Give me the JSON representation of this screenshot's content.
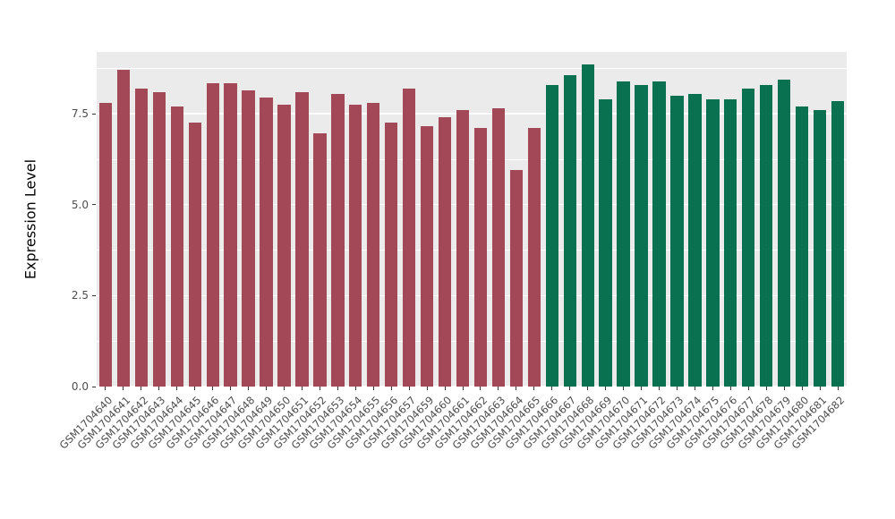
{
  "chart_data": {
    "type": "bar",
    "title": "",
    "xlabel": "",
    "ylabel": "Expression Level",
    "ylim": [
      0,
      9.2
    ],
    "yticks_major": [
      0.0,
      2.5,
      5.0,
      7.5
    ],
    "ytick_labels": [
      "0.0",
      "2.5",
      "5.0",
      "7.5"
    ],
    "yticks_minor": [
      1.25,
      3.75,
      6.25,
      8.75
    ],
    "grid": "on",
    "legend_position": "none",
    "categories": [
      "GSM1704640",
      "GSM1704641",
      "GSM1704642",
      "GSM1704643",
      "GSM1704644",
      "GSM1704645",
      "GSM1704646",
      "GSM1704647",
      "GSM1704648",
      "GSM1704649",
      "GSM1704650",
      "GSM1704651",
      "GSM1704652",
      "GSM1704653",
      "GSM1704654",
      "GSM1704655",
      "GSM1704656",
      "GSM1704657",
      "GSM1704659",
      "GSM1704660",
      "GSM1704661",
      "GSM1704662",
      "GSM1704663",
      "GSM1704664",
      "GSM1704665",
      "GSM1704666",
      "GSM1704667",
      "GSM1704668",
      "GSM1704669",
      "GSM1704670",
      "GSM1704671",
      "GSM1704672",
      "GSM1704673",
      "GSM1704674",
      "GSM1704675",
      "GSM1704676",
      "GSM1704677",
      "GSM1704678",
      "GSM1704679",
      "GSM1704680",
      "GSM1704681",
      "GSM1704682"
    ],
    "values": [
      7.8,
      8.7,
      8.2,
      8.1,
      7.7,
      7.25,
      8.35,
      8.35,
      8.15,
      7.95,
      7.75,
      8.1,
      6.95,
      8.05,
      7.75,
      7.8,
      7.25,
      8.2,
      7.15,
      7.4,
      7.6,
      7.1,
      7.65,
      5.95,
      7.1,
      8.3,
      8.55,
      8.85,
      7.9,
      8.4,
      8.3,
      8.4,
      8.0,
      8.05,
      7.9,
      7.9,
      8.2,
      8.3,
      8.45,
      7.7,
      7.6,
      7.85
    ],
    "color_groups": [
      {
        "color": "#A24857",
        "from": "GSM1704640",
        "to": "GSM1704665",
        "count": 25
      },
      {
        "color": "#0A7150",
        "from": "GSM1704666",
        "to": "GSM1704682",
        "count": 17
      }
    ],
    "color_split_index": 25,
    "style_colors": {
      "panel_background": "#EBEBEB",
      "gridline": "#FFFFFF",
      "tick_text": "#4D4D4D",
      "axis_title_text": "#000000"
    }
  }
}
